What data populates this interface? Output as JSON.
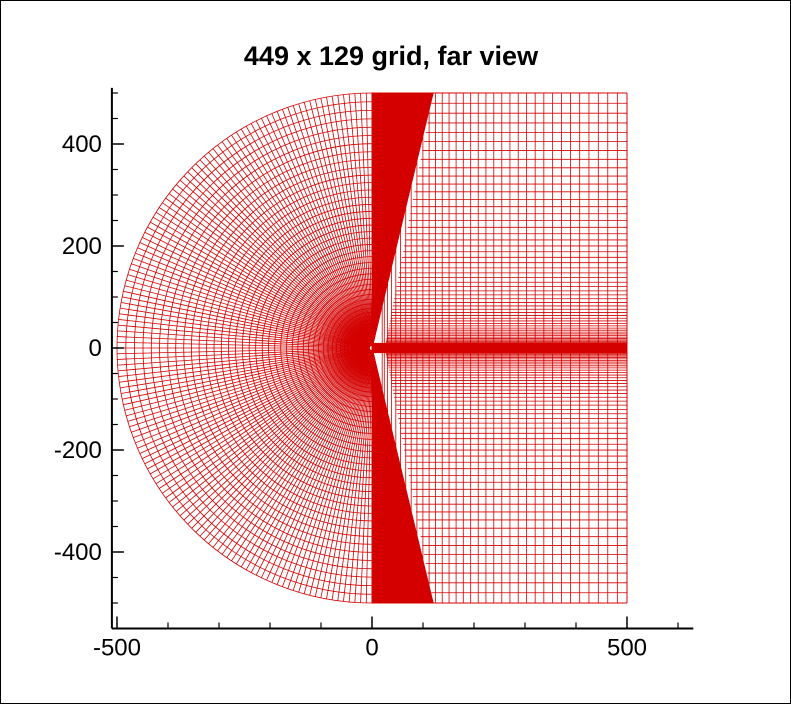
{
  "chart_data": {
    "type": "line",
    "title": "449 x 129 grid, far view",
    "xlabel": "",
    "ylabel": "",
    "xlim": [
      -510,
      630
    ],
    "ylim": [
      -550,
      510
    ],
    "x_ticks": [
      -500,
      0,
      500
    ],
    "x_tick_labels": [
      "-500",
      "0",
      "500"
    ],
    "y_ticks": [
      -400,
      -200,
      0,
      200,
      400
    ],
    "y_tick_labels": [
      "-400",
      "-200",
      "0",
      "200",
      "400"
    ],
    "grid": false,
    "legend": "none",
    "mesh": {
      "description_of_shape": "C-grid around a body at origin",
      "i_points": 449,
      "j_points": 129,
      "outer_radius": 500,
      "far_field_x": 500,
      "body_chord_end_x": 0,
      "cluster_x_range": [
        0,
        120
      ]
    },
    "colors": {
      "mesh": "#d40000",
      "axes": "#000000",
      "background": "#ffffff"
    }
  }
}
